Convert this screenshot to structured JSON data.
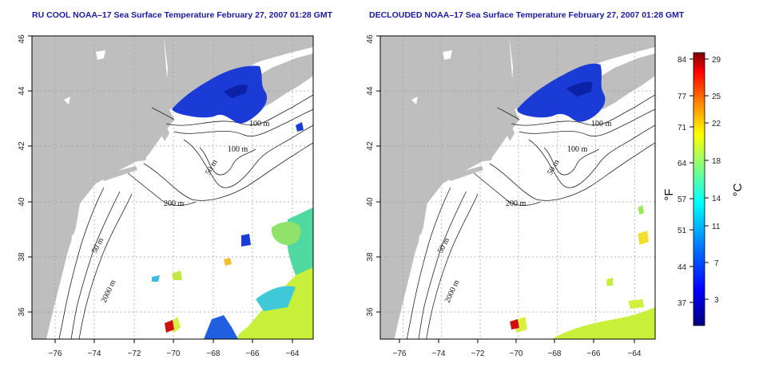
{
  "panels": [
    {
      "id": "left",
      "title": "RU COOL NOAA–17 Sea Surface Temperature February 27, 2007 01:28 GMT",
      "depth_labels": [
        "100 m",
        "100 m",
        "50 m",
        "200 m",
        "50 m",
        "2000 m"
      ]
    },
    {
      "id": "right",
      "title": "DECLOUDED NOAA–17 Sea Surface Temperature February 27, 2007 01:28 GMT",
      "depth_labels": [
        "100 m",
        "100 m",
        "50 m",
        "200 m",
        "50 m",
        "2000 m"
      ]
    }
  ],
  "axes": {
    "lon_ticks": [
      "−76",
      "−74",
      "−72",
      "−70",
      "−68",
      "−66",
      "−64"
    ],
    "lat_ticks": [
      "36",
      "38",
      "40",
      "42",
      "44",
      "46"
    ],
    "lon_values": [
      -76,
      -74,
      -72,
      -70,
      -68,
      -66,
      -64
    ],
    "lat_values": [
      36,
      38,
      40,
      42,
      44,
      46
    ],
    "lon_range": [
      -77.2,
      -63.0
    ],
    "lat_range": [
      35.0,
      46.0
    ]
  },
  "colorbar": {
    "fahrenheit_ticks": [
      "84",
      "77",
      "71",
      "64",
      "57",
      "51",
      "44",
      "37"
    ],
    "celsius_ticks": [
      "29",
      "25",
      "22",
      "18",
      "14",
      "11",
      "7",
      "3"
    ],
    "fahrenheit_unit": "°F",
    "celsius_unit": "°C",
    "colors": [
      "#7f0000",
      "#ff0000",
      "#ff8000",
      "#ffff00",
      "#80ff80",
      "#00ffff",
      "#0080ff",
      "#0000ff",
      "#00007f"
    ]
  },
  "colors": {
    "land": "#bebebe",
    "ocean": "#ffffff",
    "cold_water": "#1a3bd6",
    "title": "#1a1aa0"
  }
}
